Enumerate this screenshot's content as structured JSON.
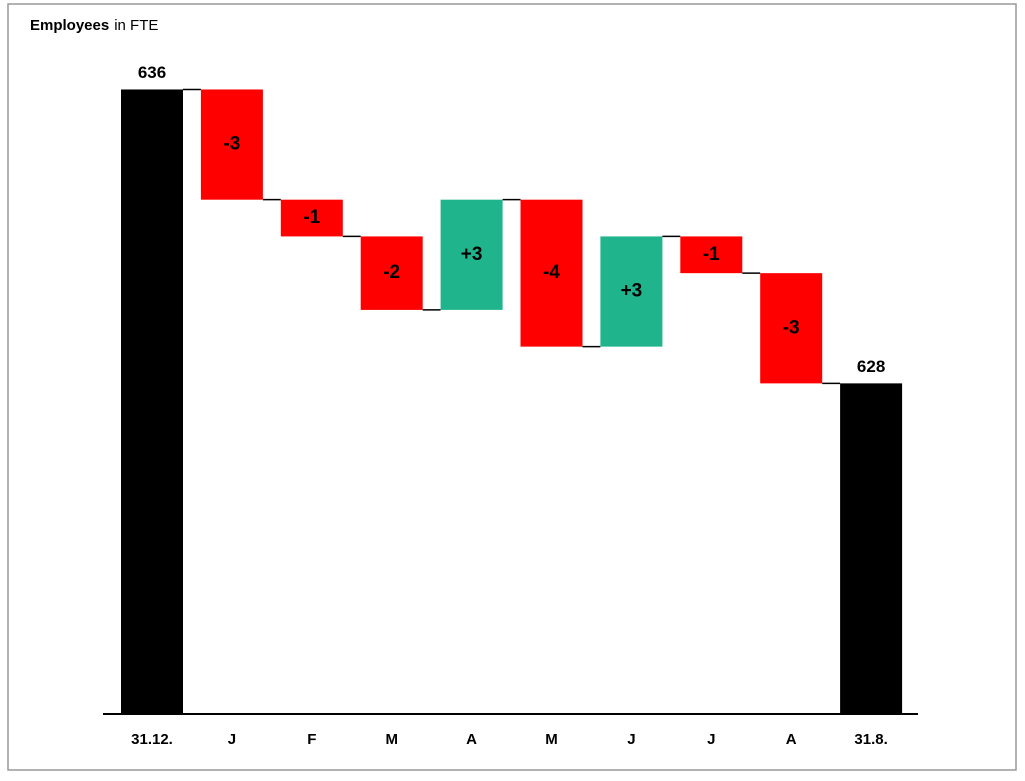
{
  "chart_data": {
    "type": "waterfall",
    "title": "Employees",
    "title_unit": "in FTE",
    "categories": [
      "31.12.",
      "J",
      "F",
      "M",
      "A",
      "M",
      "J",
      "J",
      "A",
      "31.8."
    ],
    "values": [
      636,
      -3,
      -1,
      -2,
      3,
      -4,
      3,
      -1,
      -3,
      628
    ],
    "value_labels": [
      "636",
      "-3",
      "-1",
      "-2",
      "+3",
      "-4",
      "+3",
      "-1",
      "-3",
      "628"
    ],
    "colors": {
      "total": "#000000",
      "decrease": "#ff0000",
      "increase": "#1fb48c"
    },
    "ylim": [
      619,
      638
    ]
  }
}
